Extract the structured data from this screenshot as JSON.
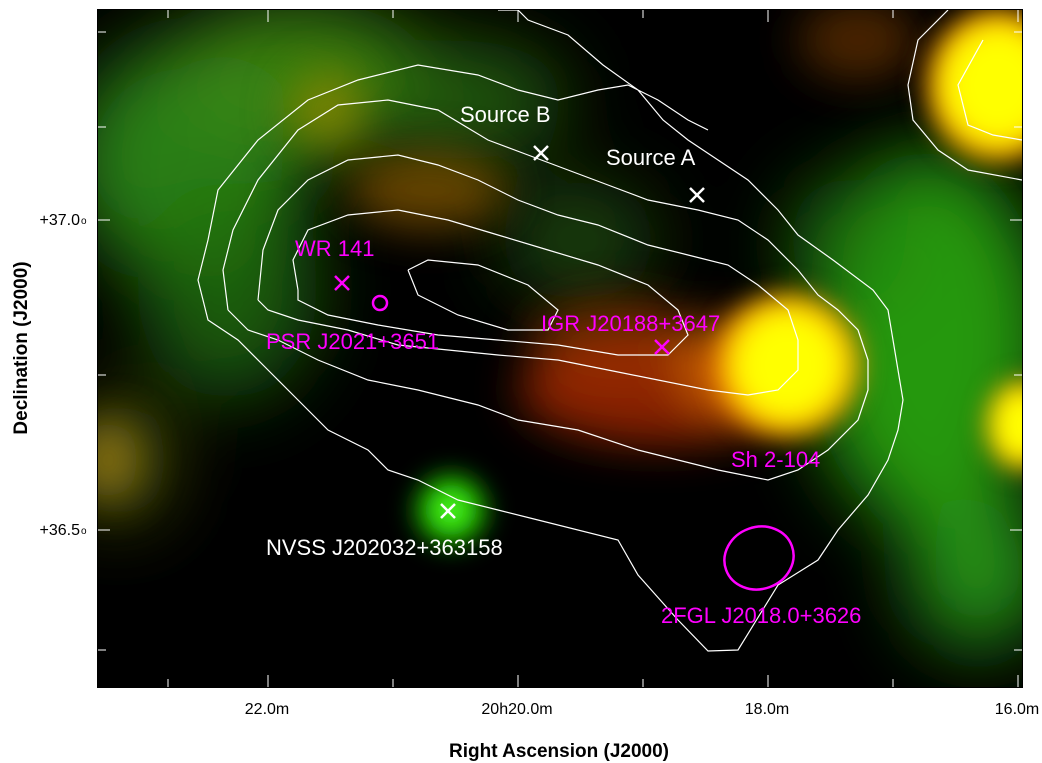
{
  "figure": {
    "xlabel": "Right Ascension (J2000)",
    "ylabel": "Declination (J2000)",
    "x_ticks": [
      "22.0m",
      "20h20.0m",
      "18.0m",
      "16.0m"
    ],
    "y_ticks": [
      "+37.0",
      "+36.5"
    ],
    "y_tick_degree_mark": "o",
    "colors": {
      "contour": "#ffffff",
      "white_marker": "#ffffff",
      "magenta_marker": "#ff00ff",
      "green_emission": "#22cc11",
      "yellow_emission": "#ffff00",
      "orange_emission": "#ff8800"
    }
  },
  "sources": {
    "source_b": {
      "label": "Source B",
      "marker": "x-white"
    },
    "source_a": {
      "label": "Source A",
      "marker": "x-white"
    },
    "wr141": {
      "label": "WR 141",
      "marker": "x-magenta"
    },
    "psr": {
      "label": "PSR J2021+3651",
      "marker": "circle-magenta"
    },
    "igr": {
      "label": "IGR J20188+3647",
      "marker": "x-magenta"
    },
    "sh2": {
      "label": "Sh 2-104",
      "marker": "none"
    },
    "nvss": {
      "label": "NVSS J202032+363158",
      "marker": "x-white"
    },
    "fgl": {
      "label": "2FGL J2018.0+3626",
      "marker": "ellipse-magenta"
    }
  }
}
